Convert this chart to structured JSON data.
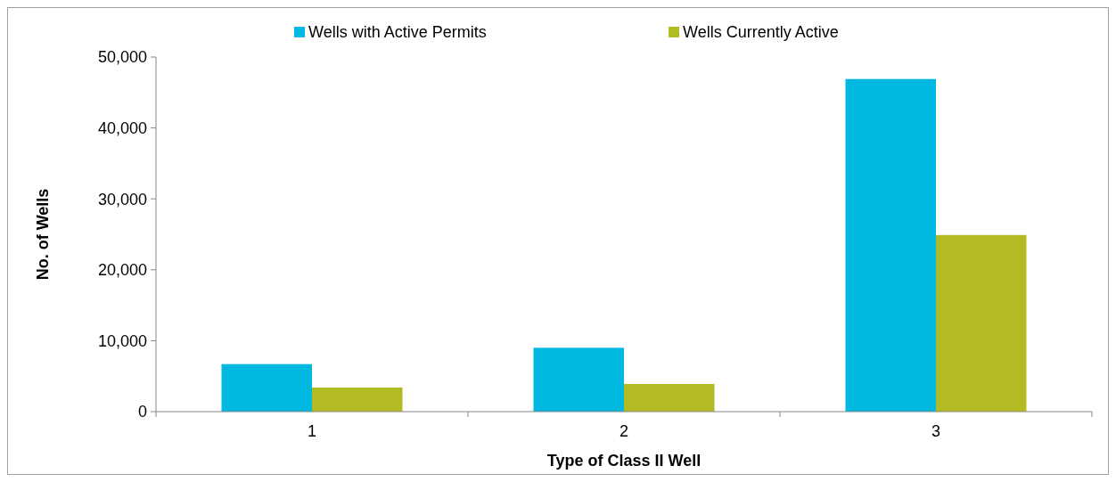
{
  "chart_data": {
    "type": "bar",
    "xlabel": "Type of Class II Well",
    "ylabel": "No. of Wells",
    "categories": [
      "1",
      "2",
      "3"
    ],
    "series": [
      {
        "name": "Wells with Active Permits",
        "color": "#00b8e0",
        "values": [
          6700,
          9000,
          46900
        ]
      },
      {
        "name": "Wells Currently Active",
        "color": "#b2bb22",
        "values": [
          3400,
          3900,
          24900
        ]
      }
    ],
    "ylim": [
      0,
      50000
    ],
    "yticks": [
      {
        "value": 0,
        "label": "0"
      },
      {
        "value": 10000,
        "label": "10,000"
      },
      {
        "value": 20000,
        "label": "20,000"
      },
      {
        "value": 30000,
        "label": "30,000"
      },
      {
        "value": 40000,
        "label": "40,000"
      },
      {
        "value": 50000,
        "label": "50,000"
      }
    ],
    "grid": false,
    "legend": "top"
  }
}
